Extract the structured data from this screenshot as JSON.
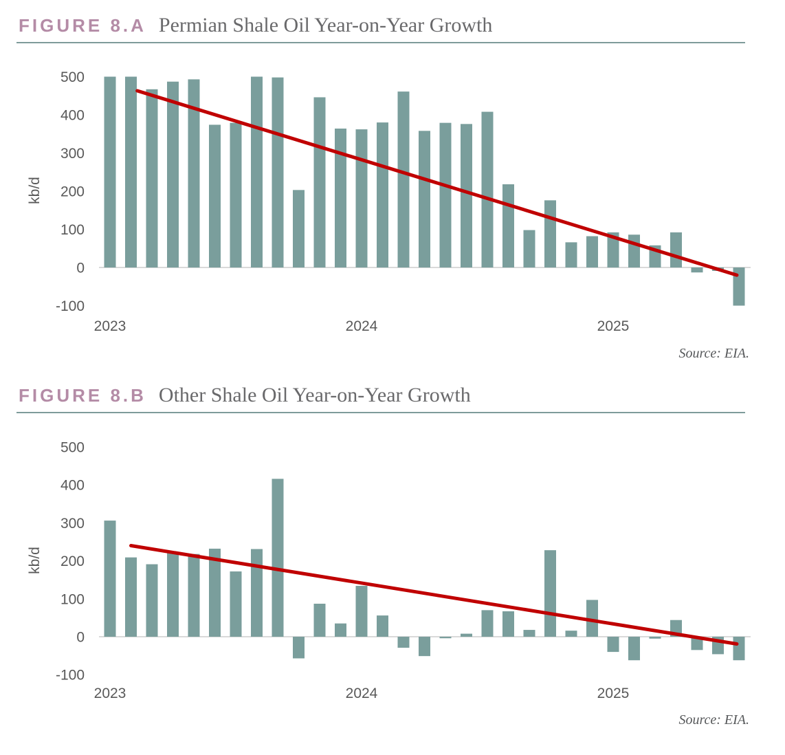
{
  "colors": {
    "bar": "#7a9e9c",
    "trend_line": "#c00000",
    "figure_label": "#b48ba6",
    "title_text": "#69696b",
    "tick_text": "#595959",
    "axis_line": "#d9d9d9",
    "rule": "#7e9b9a",
    "source_text": "#56585a"
  },
  "chart_data": [
    {
      "type": "bar",
      "figure_label": "FIGURE 8.A",
      "title": "Permian Shale Oil Year-on-Year Growth",
      "ylabel": "kb/d",
      "source": "Source: EIA.",
      "grid": false,
      "legend": null,
      "ylim": [
        -130,
        520
      ],
      "yticks": [
        500,
        400,
        300,
        200,
        100,
        0,
        -100
      ],
      "xtick_labels": [
        {
          "label": "2023",
          "month_index": 0
        },
        {
          "label": "2024",
          "month_index": 12
        },
        {
          "label": "2025",
          "month_index": 24
        }
      ],
      "x": [
        "Jan 2023",
        "Feb 2023",
        "Mar 2023",
        "Apr 2023",
        "May 2023",
        "Jun 2023",
        "Jul 2023",
        "Aug 2023",
        "Sep 2023",
        "Oct 2023",
        "Nov 2023",
        "Dec 2023",
        "Jan 2024",
        "Feb 2024",
        "Mar 2024",
        "Apr 2024",
        "May 2024",
        "Jun 2024",
        "Jul 2024",
        "Aug 2024",
        "Sep 2024",
        "Oct 2024",
        "Nov 2024",
        "Dec 2024",
        "Jan 2025",
        "Feb 2025",
        "Mar 2025",
        "Apr 2025",
        "May 2025",
        "Jun 2025",
        "Jul 2025"
      ],
      "values": [
        500,
        500,
        467,
        487,
        493,
        374,
        379,
        500,
        498,
        203,
        446,
        364,
        362,
        380,
        461,
        358,
        379,
        376,
        408,
        218,
        98,
        176,
        66,
        82,
        92,
        86,
        58,
        92,
        -13,
        -9,
        -100
      ],
      "trend_line": {
        "shape": "linear",
        "start_month_index": 1.3,
        "start_value": 463,
        "end_month_index": 29.9,
        "end_value": -20
      }
    },
    {
      "type": "bar",
      "figure_label": "FIGURE 8.B",
      "title": "Other Shale Oil Year-on-Year Growth",
      "ylabel": "kb/d",
      "source": "Source: EIA.",
      "grid": false,
      "legend": null,
      "ylim": [
        -130,
        520
      ],
      "yticks": [
        500,
        400,
        300,
        200,
        100,
        0,
        -100
      ],
      "xtick_labels": [
        {
          "label": "2023",
          "month_index": 0
        },
        {
          "label": "2024",
          "month_index": 12
        },
        {
          "label": "2025",
          "month_index": 24
        }
      ],
      "x": [
        "Jan 2023",
        "Feb 2023",
        "Mar 2023",
        "Apr 2023",
        "May 2023",
        "Jun 2023",
        "Jul 2023",
        "Aug 2023",
        "Sep 2023",
        "Oct 2023",
        "Nov 2023",
        "Dec 2023",
        "Jan 2024",
        "Feb 2024",
        "Mar 2024",
        "Apr 2024",
        "May 2024",
        "Jun 2024",
        "Jul 2024",
        "Aug 2024",
        "Sep 2024",
        "Oct 2024",
        "Nov 2024",
        "Dec 2024",
        "Jan 2025",
        "Feb 2025",
        "Mar 2025",
        "Apr 2025",
        "May 2025",
        "Jun 2025",
        "Jul 2025"
      ],
      "values": [
        306,
        209,
        191,
        221,
        218,
        232,
        172,
        231,
        416,
        -57,
        87,
        35,
        134,
        56,
        -29,
        -51,
        -4,
        8,
        70,
        67,
        18,
        228,
        16,
        97,
        -40,
        -62,
        -5,
        44,
        -35,
        -46,
        -62
      ],
      "trend_line": {
        "shape": "linear",
        "start_month_index": 1.0,
        "start_value": 240,
        "end_month_index": 29.9,
        "end_value": -19
      }
    }
  ]
}
